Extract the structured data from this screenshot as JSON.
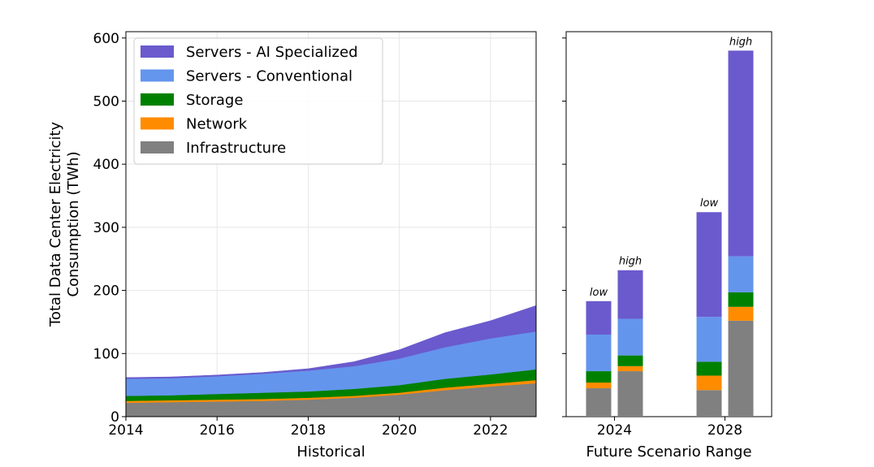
{
  "chart_data": [
    {
      "type": "area",
      "stacked": true,
      "xlabel": "Historical",
      "ylabel": "Total Data Center Electricity\nConsumption (TWh)",
      "xlim": [
        2014,
        2023
      ],
      "ylim": [
        0,
        610
      ],
      "xticks": [
        2014,
        2016,
        2018,
        2020,
        2022
      ],
      "yticks": [
        0,
        100,
        200,
        300,
        400,
        500,
        600
      ],
      "grid": true,
      "legend": "top-left",
      "x": [
        2014,
        2015,
        2016,
        2017,
        2018,
        2019,
        2020,
        2021,
        2022,
        2023
      ],
      "series": [
        {
          "name": "Infrastructure",
          "color": "#808080",
          "values": [
            22,
            23,
            24,
            25,
            27,
            30,
            35,
            42,
            48,
            53
          ]
        },
        {
          "name": "Network",
          "color": "#ff8c00",
          "values": [
            3,
            3,
            3,
            3,
            3,
            3,
            3,
            4,
            4,
            5
          ]
        },
        {
          "name": "Storage",
          "color": "#008000",
          "values": [
            8,
            8,
            9,
            10,
            10,
            11,
            12,
            14,
            15,
            17
          ]
        },
        {
          "name": "Servers - Conventional",
          "color": "#6495ed",
          "values": [
            27,
            27,
            28,
            30,
            33,
            36,
            42,
            50,
            57,
            60
          ]
        },
        {
          "name": "Servers - AI Specialized",
          "color": "#6a5acd",
          "values": [
            2,
            2,
            2,
            2,
            3,
            7,
            14,
            23,
            28,
            41
          ]
        }
      ]
    },
    {
      "type": "bar",
      "stacked": true,
      "xlabel": "Future Scenario Range",
      "ylim": [
        0,
        610
      ],
      "xticks": [
        "2024",
        "2028"
      ],
      "bars": [
        {
          "year": "2024",
          "scenario": "low",
          "stack": [
            45,
            9,
            18,
            58,
            53
          ]
        },
        {
          "year": "2024",
          "scenario": "high",
          "stack": [
            72,
            8,
            17,
            58,
            77
          ]
        },
        {
          "year": "2028",
          "scenario": "low",
          "stack": [
            42,
            23,
            22,
            71,
            166
          ]
        },
        {
          "year": "2028",
          "scenario": "high",
          "stack": [
            152,
            22,
            23,
            57,
            326
          ]
        }
      ],
      "stack_order": [
        "Infrastructure",
        "Network",
        "Storage",
        "Servers - Conventional",
        "Servers - AI Specialized"
      ]
    }
  ]
}
